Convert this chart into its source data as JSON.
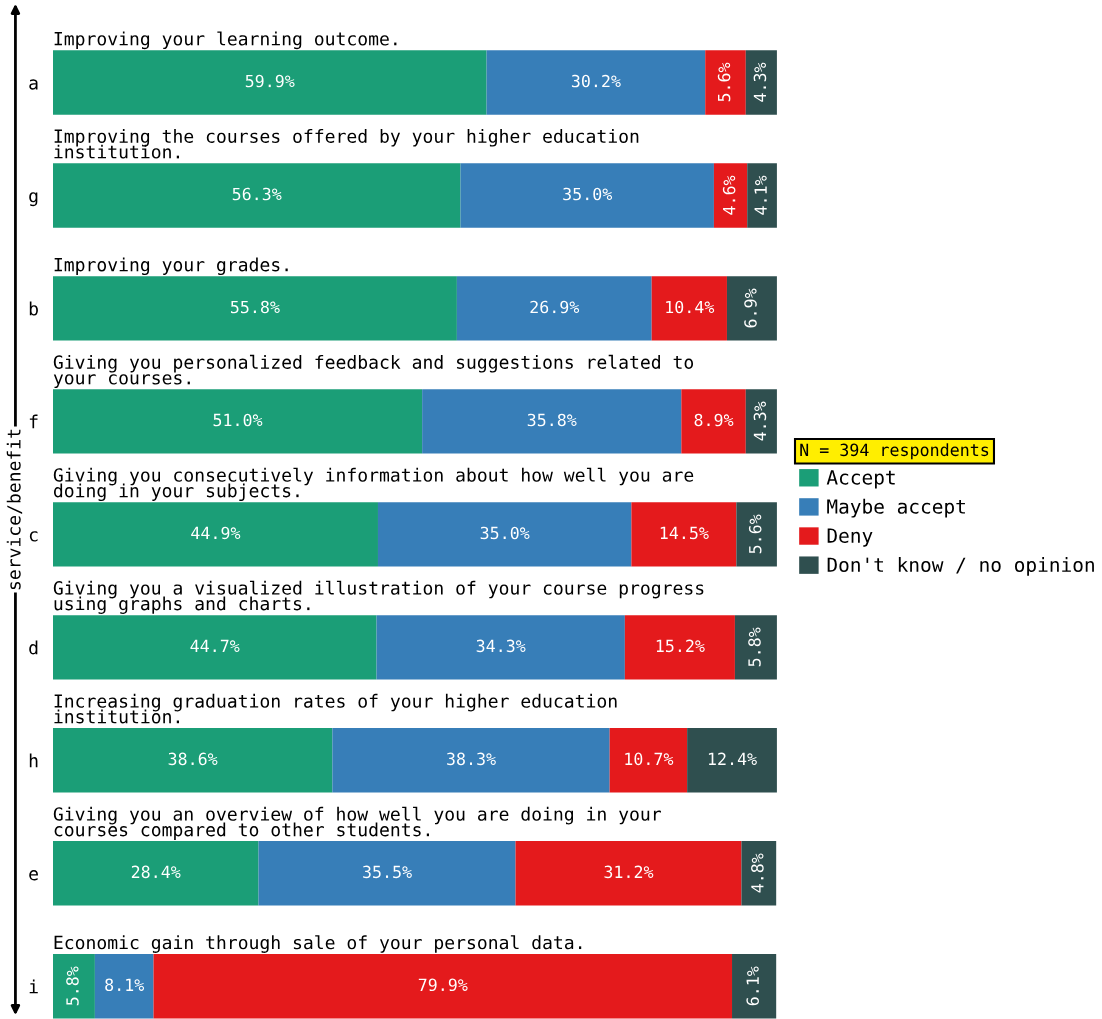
{
  "chart_data": {
    "type": "bar",
    "orientation": "horizontal",
    "stacked": true,
    "legend": "right",
    "legend_title": "N = 394 respondents",
    "ylabel": "service/benefit",
    "categories": [
      "a",
      "g",
      "b",
      "f",
      "c",
      "d",
      "h",
      "e",
      "i"
    ],
    "annotations": [
      "Improving your learning outcome.",
      "Improving the courses offered by your higher education\ninstitution.",
      "Improving your grades.",
      "Giving you personalized feedback and suggestions related to\nyour courses.",
      "Giving you consecutively information about how well you are\ndoing in your subjects.",
      "Giving you a visualized illustration of your course progress\nusing graphs and charts.",
      "Increasing graduation rates of your higher education\ninstitution.",
      "Giving you an overview of how well you are doing in your\ncourses compared to other students.",
      "Economic gain through sale of your personal data."
    ],
    "series": [
      {
        "name": "Accept",
        "color": "#1b9e77",
        "values": [
          59.9,
          56.3,
          55.8,
          51.0,
          44.9,
          44.7,
          38.6,
          28.4,
          5.8
        ],
        "value_labels": [
          "59.9%",
          "56.3%",
          "55.8%",
          "51.0%",
          "44.9%",
          "44.7%",
          "38.6%",
          "28.4%",
          "5.8%"
        ]
      },
      {
        "name": "Maybe accept",
        "color": "#377eb8",
        "values": [
          30.2,
          35.0,
          26.9,
          35.8,
          35.0,
          34.3,
          38.3,
          35.5,
          8.1
        ],
        "value_labels": [
          "30.2%",
          "35.0%",
          "26.9%",
          "35.8%",
          "35.0%",
          "34.3%",
          "38.3%",
          "35.5%",
          "8.1%"
        ]
      },
      {
        "name": "Deny",
        "color": "#e41a1c",
        "values": [
          5.6,
          4.6,
          10.4,
          8.9,
          14.5,
          15.2,
          10.7,
          31.2,
          79.9
        ],
        "value_labels": [
          "5.6%",
          "4.6%",
          "10.4%",
          "8.9%",
          "14.5%",
          "15.2%",
          "10.7%",
          "31.2%",
          "79.9%"
        ]
      },
      {
        "name": "Don't know / no opinion",
        "color": "#2f4f4f",
        "values": [
          4.3,
          4.1,
          6.9,
          4.3,
          5.6,
          5.8,
          12.4,
          4.8,
          6.1
        ],
        "value_labels": [
          "4.3%",
          "4.1%",
          "6.9%",
          "4.3%",
          "5.6%",
          "5.8%",
          "12.4%",
          "4.8%",
          "6.1%"
        ]
      }
    ]
  }
}
